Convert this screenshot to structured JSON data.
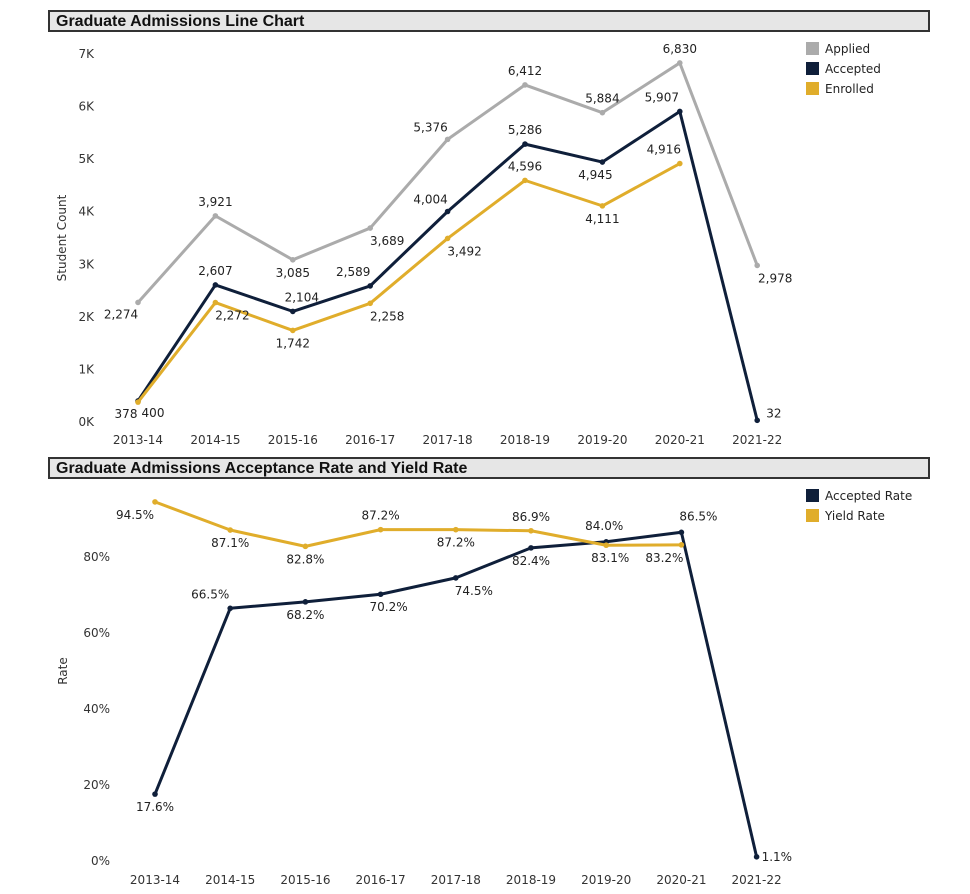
{
  "chart_data": [
    {
      "type": "line",
      "title": "Graduate Admissions Line Chart",
      "xlabel": "",
      "ylabel": "Student Count",
      "categories": [
        "2013-14",
        "2014-15",
        "2015-16",
        "2016-17",
        "2017-18",
        "2018-19",
        "2019-20",
        "2020-21",
        "2021-22"
      ],
      "ylim": [
        0,
        7000
      ],
      "yticks": [
        0,
        1000,
        2000,
        3000,
        4000,
        5000,
        6000,
        7000
      ],
      "ytick_labels": [
        "0K",
        "1K",
        "2K",
        "3K",
        "4K",
        "5K",
        "6K",
        "7K"
      ],
      "legend_position": "top-right",
      "series": [
        {
          "name": "Applied",
          "color": "#ababab",
          "values": [
            2274,
            3921,
            3085,
            3689,
            5376,
            6412,
            5884,
            6830,
            2978
          ],
          "labels": [
            "2,274",
            "3,921",
            "3,085",
            "3,689",
            "5,376",
            "6,412",
            "5,884",
            "6,830",
            "2,978"
          ]
        },
        {
          "name": "Accepted",
          "color": "#0f1f3a",
          "values": [
            400,
            2607,
            2104,
            2589,
            4004,
            5286,
            4945,
            5907,
            32
          ],
          "labels": [
            "400",
            "2,607",
            "2,104",
            "2,589",
            "4,004",
            "5,286",
            "4,945",
            "5,907",
            "32"
          ]
        },
        {
          "name": "Enrolled",
          "color": "#e0ad2b",
          "values": [
            378,
            2272,
            1742,
            2258,
            3492,
            4596,
            4111,
            4916,
            null
          ],
          "labels": [
            "378",
            "2,272",
            "1,742",
            "2,258",
            "3,492",
            "4,596",
            "4,111",
            "4,916",
            ""
          ]
        }
      ]
    },
    {
      "type": "line",
      "title": "Graduate Admissions Acceptance Rate and Yield Rate",
      "xlabel": "",
      "ylabel": "Rate",
      "categories": [
        "2013-14",
        "2014-15",
        "2015-16",
        "2016-17",
        "2017-18",
        "2018-19",
        "2019-20",
        "2020-21",
        "2021-22"
      ],
      "ylim": [
        0,
        100
      ],
      "yticks": [
        0,
        20,
        40,
        60,
        80
      ],
      "ytick_labels": [
        "0%",
        "20%",
        "40%",
        "60%",
        "80%"
      ],
      "legend_position": "top-right",
      "series": [
        {
          "name": "Accepted Rate",
          "color": "#0f1f3a",
          "values": [
            17.6,
            66.5,
            68.2,
            70.2,
            74.5,
            82.4,
            84.0,
            86.5,
            1.1
          ],
          "labels": [
            "17.6%",
            "66.5%",
            "68.2%",
            "70.2%",
            "74.5%",
            "82.4%",
            "84.0%",
            "86.5%",
            "1.1%"
          ]
        },
        {
          "name": "Yield Rate",
          "color": "#e0ad2b",
          "values": [
            94.5,
            87.1,
            82.8,
            87.2,
            87.2,
            86.9,
            83.1,
            83.2,
            null
          ],
          "labels": [
            "94.5%",
            "87.1%",
            "82.8%",
            "87.2%",
            "87.2%",
            "86.9%",
            "83.1%",
            "83.2%",
            ""
          ]
        }
      ]
    }
  ]
}
